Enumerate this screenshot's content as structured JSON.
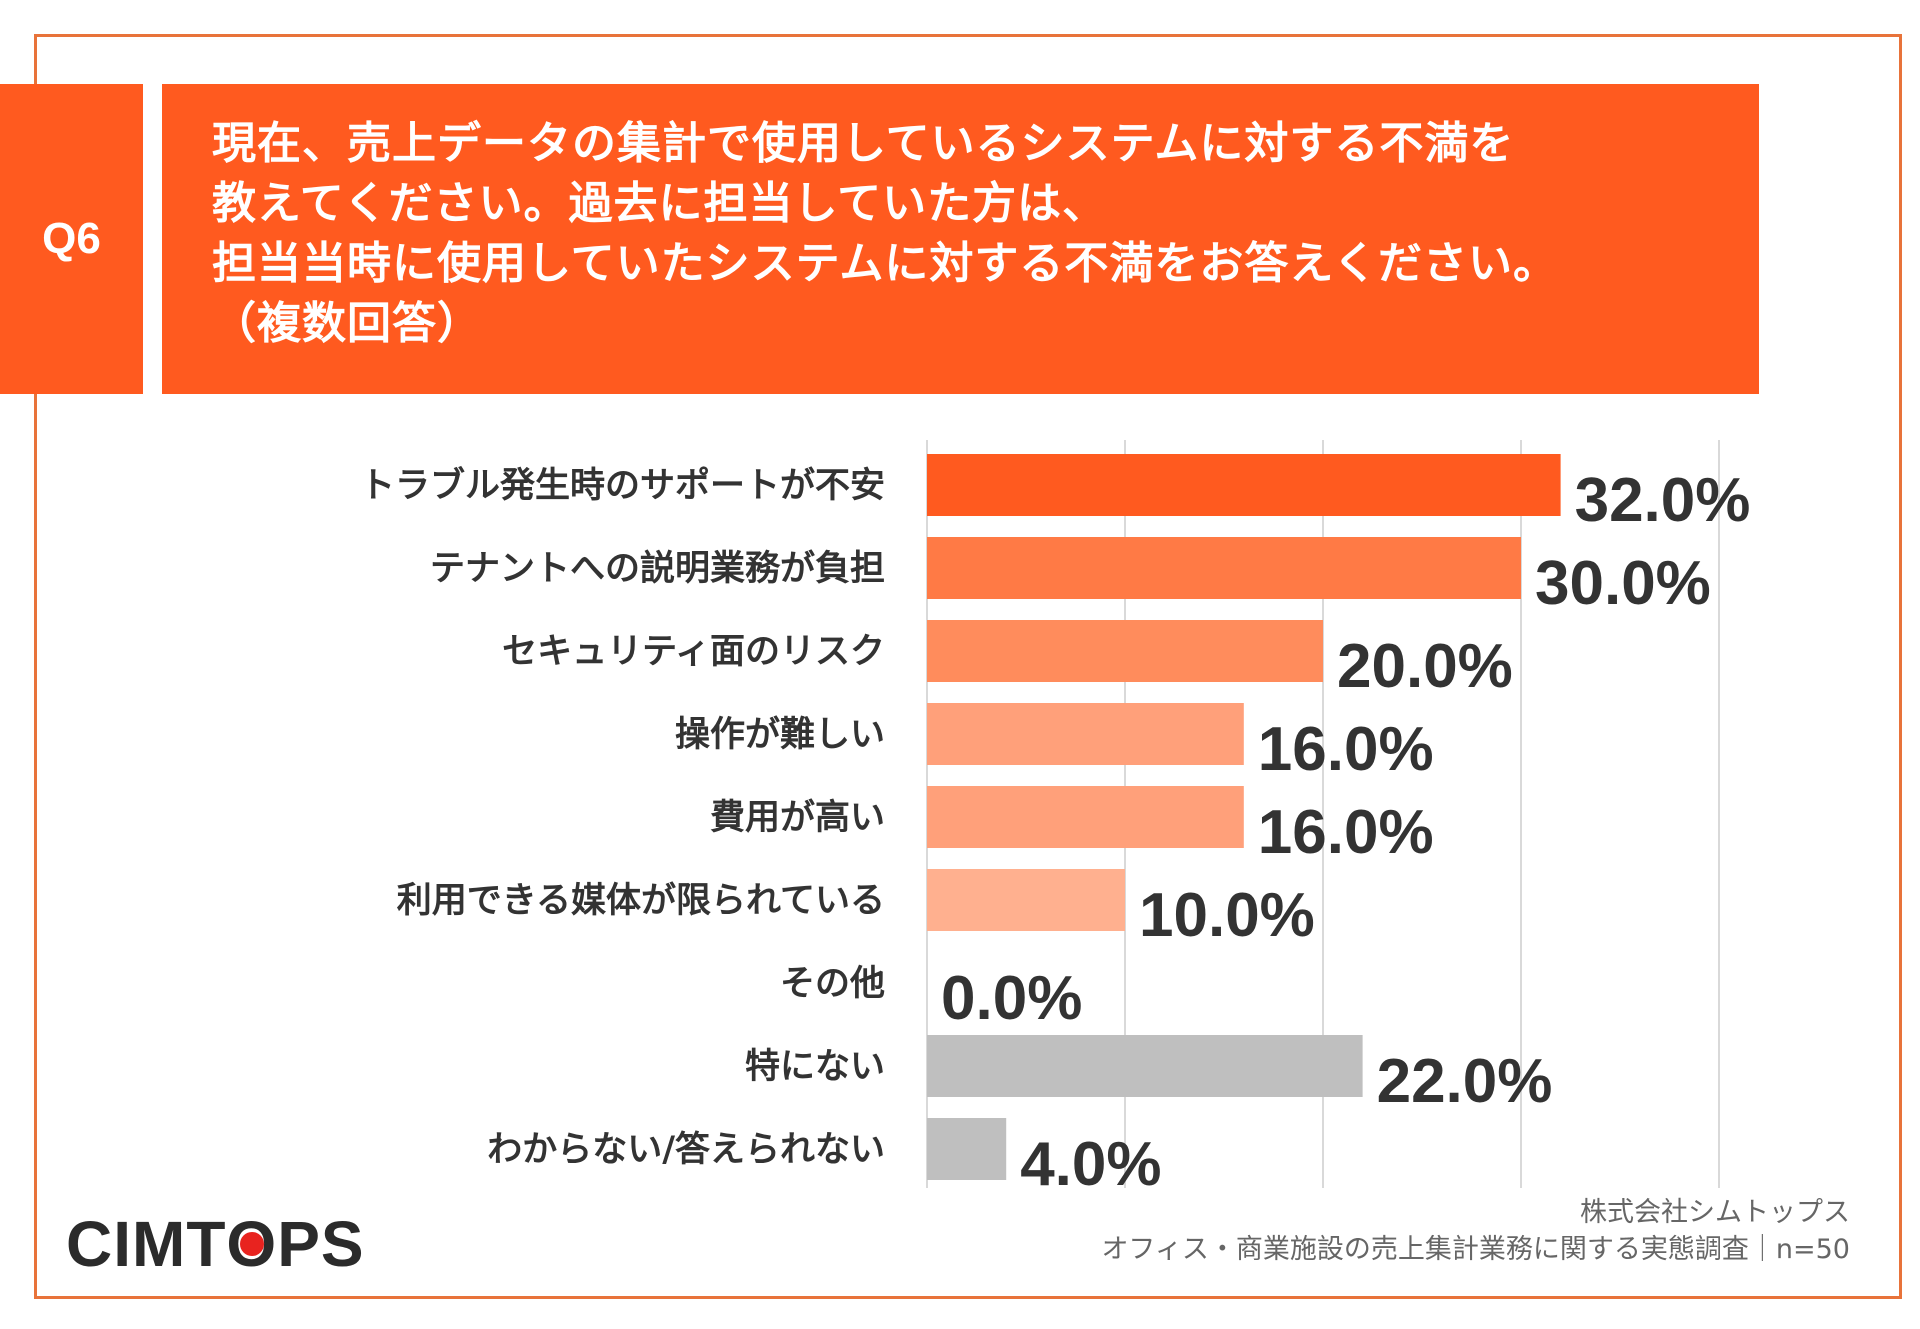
{
  "question": {
    "badge": "Q6",
    "lines": [
      "現在、売上データの集計で使用しているシステムに対する不満を",
      "教えてください。過去に担当していた方は、",
      "担当当時に使用していたシステムに対する不満をお答えください。",
      "（複数回答）"
    ]
  },
  "chart_data": {
    "type": "bar",
    "orientation": "horizontal",
    "title": "",
    "xlabel": "",
    "ylabel": "",
    "xlim": [
      0,
      40
    ],
    "grid": true,
    "categories": [
      "トラブル発生時のサポートが不安",
      "テナントへの説明業務が負担",
      "セキュリティ面のリスク",
      "操作が難しい",
      "費用が高い",
      "利用できる媒体が限られている",
      "その他",
      "特にない",
      "わからない/答えられない"
    ],
    "values": [
      32.0,
      30.0,
      20.0,
      16.0,
      16.0,
      10.0,
      0.0,
      22.0,
      4.0
    ],
    "value_labels": [
      "32.0%",
      "30.0%",
      "20.0%",
      "16.0%",
      "16.0%",
      "10.0%",
      "0.0%",
      "22.0%",
      "4.0%"
    ],
    "colors": [
      "#ff5a1f",
      "#ff7a45",
      "#ff8c5c",
      "#ffa07a",
      "#ffa07a",
      "#ffb08f",
      "#ffb08f",
      "#bfbfbf",
      "#bfbfbf"
    ]
  },
  "footer": {
    "logo_parts": [
      "CIMT",
      "O",
      "PS"
    ],
    "company": "株式会社シムトップス",
    "source": "オフィス・商業施設の売上集計業務に関する実態調査｜n=50"
  }
}
